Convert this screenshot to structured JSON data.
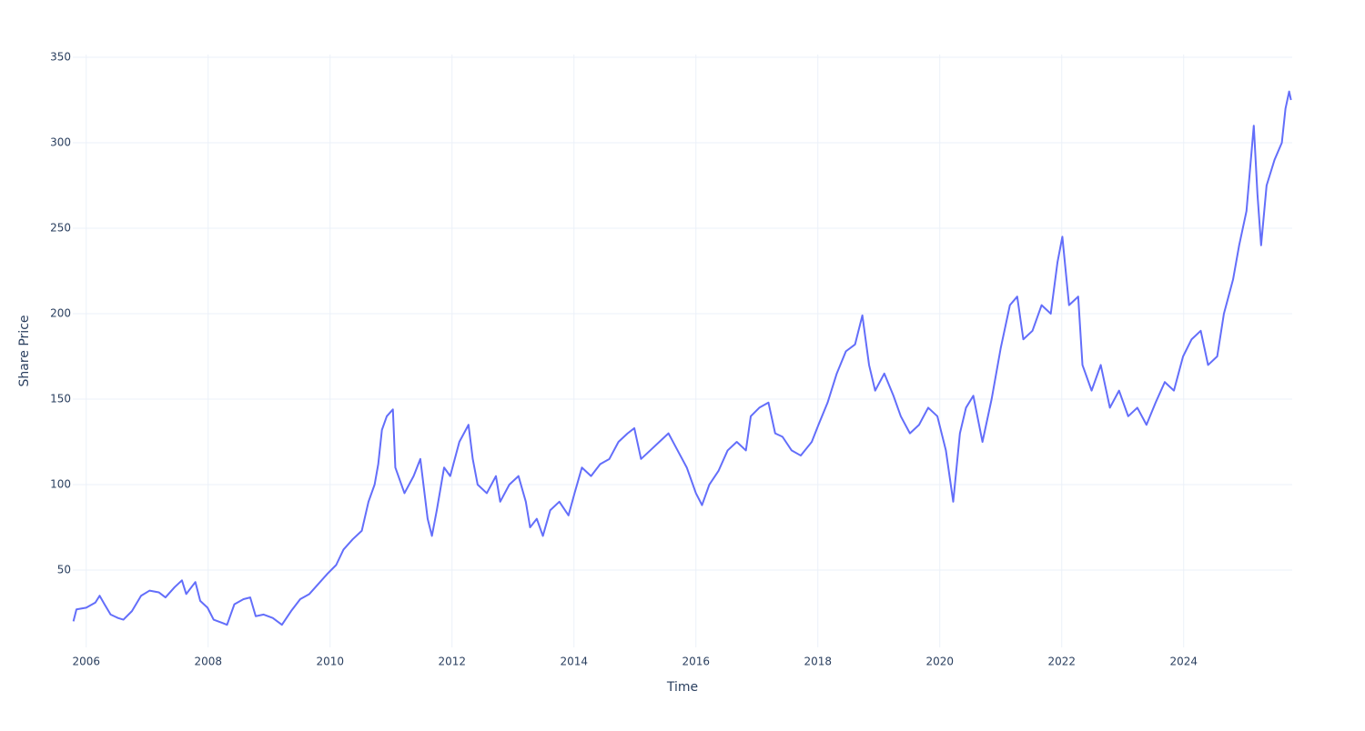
{
  "chart_data": {
    "type": "line",
    "x_label": "Time",
    "y_label": "Share Price",
    "xlim": [
      2005.78,
      2025.78
    ],
    "xticks": [
      2006,
      2008,
      2010,
      2012,
      2014,
      2016,
      2018,
      2020,
      2022,
      2024
    ],
    "ylim": [
      4.8,
      351.6
    ],
    "yticks": [
      50,
      100,
      150,
      200,
      250,
      300,
      350
    ],
    "grid": true,
    "series": [
      {
        "color": "#636efa",
        "x": [
          2005.79,
          2005.84,
          2006.0,
          2006.15,
          2006.22,
          2006.3,
          2006.4,
          2006.52,
          2006.61,
          2006.75,
          2006.9,
          2007.04,
          2007.19,
          2007.3,
          2007.45,
          2007.57,
          2007.64,
          2007.79,
          2007.87,
          2007.99,
          2008.09,
          2008.24,
          2008.31,
          2008.43,
          2008.58,
          2008.69,
          2008.78,
          2008.91,
          2009.06,
          2009.21,
          2009.36,
          2009.51,
          2009.66,
          2009.81,
          2009.96,
          2010.1,
          2010.22,
          2010.37,
          2010.52,
          2010.63,
          2010.73,
          2010.79,
          2010.85,
          2010.93,
          2011.03,
          2011.07,
          2011.22,
          2011.37,
          2011.48,
          2011.6,
          2011.67,
          2011.75,
          2011.87,
          2011.97,
          2012.12,
          2012.27,
          2012.34,
          2012.42,
          2012.57,
          2012.72,
          2012.79,
          2012.94,
          2013.09,
          2013.21,
          2013.28,
          2013.39,
          2013.49,
          2013.61,
          2013.76,
          2013.91,
          2014.01,
          2014.13,
          2014.28,
          2014.43,
          2014.58,
          2014.73,
          2014.88,
          2014.99,
          2015.1,
          2015.25,
          2015.4,
          2015.55,
          2015.7,
          2015.85,
          2016.0,
          2016.1,
          2016.22,
          2016.37,
          2016.52,
          2016.67,
          2016.82,
          2016.9,
          2017.04,
          2017.19,
          2017.3,
          2017.42,
          2017.57,
          2017.72,
          2017.9,
          2018.01,
          2018.16,
          2018.31,
          2018.46,
          2018.61,
          2018.73,
          2018.84,
          2018.94,
          2019.09,
          2019.24,
          2019.36,
          2019.51,
          2019.66,
          2019.81,
          2019.96,
          2020.1,
          2020.22,
          2020.33,
          2020.43,
          2020.55,
          2020.7,
          2020.85,
          2021.0,
          2021.15,
          2021.27,
          2021.37,
          2021.52,
          2021.67,
          2021.82,
          2021.93,
          2022.01,
          2022.12,
          2022.27,
          2022.34,
          2022.49,
          2022.64,
          2022.79,
          2022.94,
          2023.09,
          2023.24,
          2023.39,
          2023.54,
          2023.69,
          2023.84,
          2023.99,
          2024.13,
          2024.28,
          2024.4,
          2024.55,
          2024.66,
          2024.81,
          2024.91,
          2025.03,
          2025.15,
          2025.21,
          2025.27,
          2025.36,
          2025.49,
          2025.61,
          2025.67,
          2025.73,
          2025.76
        ],
        "values": [
          20,
          27,
          28,
          31,
          35,
          30,
          24,
          22,
          21,
          26,
          35,
          38,
          37,
          34,
          40,
          44,
          36,
          43,
          32,
          28,
          21,
          19,
          18,
          30,
          33,
          34,
          23,
          24,
          22,
          18,
          26,
          33,
          36,
          42,
          48,
          53,
          62,
          68,
          73,
          90,
          100,
          112,
          132,
          140,
          144,
          110,
          95,
          105,
          115,
          80,
          70,
          85,
          110,
          105,
          125,
          135,
          115,
          100,
          95,
          105,
          90,
          100,
          105,
          90,
          75,
          80,
          70,
          85,
          90,
          82,
          95,
          110,
          105,
          112,
          115,
          125,
          130,
          133,
          115,
          120,
          125,
          130,
          120,
          110,
          95,
          88,
          100,
          108,
          120,
          125,
          120,
          140,
          145,
          148,
          130,
          128,
          120,
          117,
          125,
          135,
          148,
          165,
          178,
          182,
          199,
          170,
          155,
          165,
          152,
          140,
          130,
          135,
          145,
          140,
          120,
          90,
          130,
          145,
          152,
          125,
          150,
          180,
          205,
          210,
          185,
          190,
          205,
          200,
          230,
          245,
          205,
          210,
          170,
          155,
          170,
          145,
          155,
          140,
          145,
          135,
          148,
          160,
          155,
          175,
          185,
          190,
          170,
          175,
          200,
          220,
          240,
          260,
          310,
          270,
          240,
          275,
          290,
          300,
          320,
          330,
          325
        ]
      }
    ]
  }
}
